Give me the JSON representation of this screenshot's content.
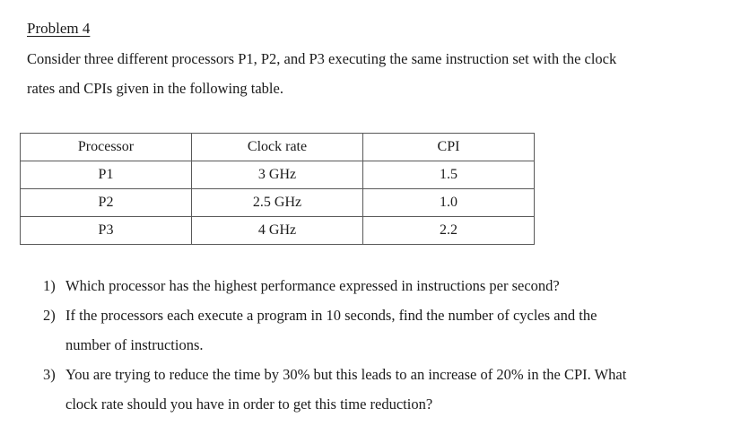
{
  "colors": {
    "background": "#ffffff",
    "text": "#1b1b1b",
    "table_border": "#595959"
  },
  "document": {
    "title": "Problem 4",
    "intro_lines": [
      "Consider three different processors P1, P2, and P3 executing the same instruction set with the clock",
      "rates and CPIs given in the following table."
    ],
    "table": {
      "headers": [
        "Processor",
        "Clock rate",
        "CPI"
      ],
      "rows": [
        [
          "P1",
          "3 GHz",
          "1.5"
        ],
        [
          "P2",
          "2.5 GHz",
          "1.0"
        ],
        [
          "P3",
          "4 GHz",
          "2.2"
        ]
      ]
    },
    "questions": [
      {
        "number": "1)",
        "lines": [
          "Which processor has the highest performance expressed in instructions per second?"
        ]
      },
      {
        "number": "2)",
        "lines": [
          "If the processors each execute a program in 10 seconds, find the number of cycles and the",
          "number of instructions."
        ]
      },
      {
        "number": "3)",
        "lines": [
          "You are trying to reduce the time by 30% but this leads to an increase of 20% in the CPI. What",
          "clock rate should you have in order to get this time reduction?"
        ]
      }
    ]
  }
}
